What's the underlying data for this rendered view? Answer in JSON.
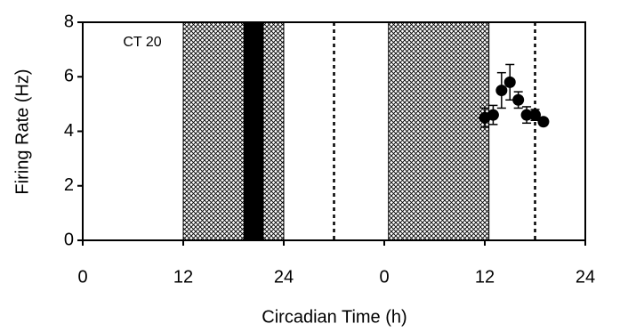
{
  "chart_data": {
    "type": "scatter",
    "ylabel": "Firing Rate (Hz)",
    "xlabel": "Circadian Time (h)",
    "annotation": "CT 20",
    "xlim": [
      0,
      60
    ],
    "xticks": [
      0,
      12,
      24,
      {
        "value": 36,
        "label": "0"
      },
      {
        "value": 48,
        "label": "12"
      },
      {
        "value": 60,
        "label": "24"
      }
    ],
    "ylim": [
      0,
      8
    ],
    "yticks": [
      0,
      2,
      4,
      6,
      8
    ],
    "shaded_regions": [
      [
        12,
        24
      ],
      [
        36.5,
        48.5
      ]
    ],
    "pulse": [
      19.2,
      21.6
    ],
    "dotted_lines": [
      30,
      54
    ],
    "series": [
      {
        "color": "#000000",
        "x": [
          48,
          49,
          50,
          51,
          52,
          53,
          54,
          55
        ],
        "values": [
          4.5,
          4.6,
          5.5,
          5.8,
          5.15,
          4.6,
          4.6,
          4.35
        ],
        "errors": [
          0.35,
          0.35,
          0.65,
          0.65,
          0.3,
          0.3,
          0.2,
          0.1
        ]
      }
    ]
  }
}
